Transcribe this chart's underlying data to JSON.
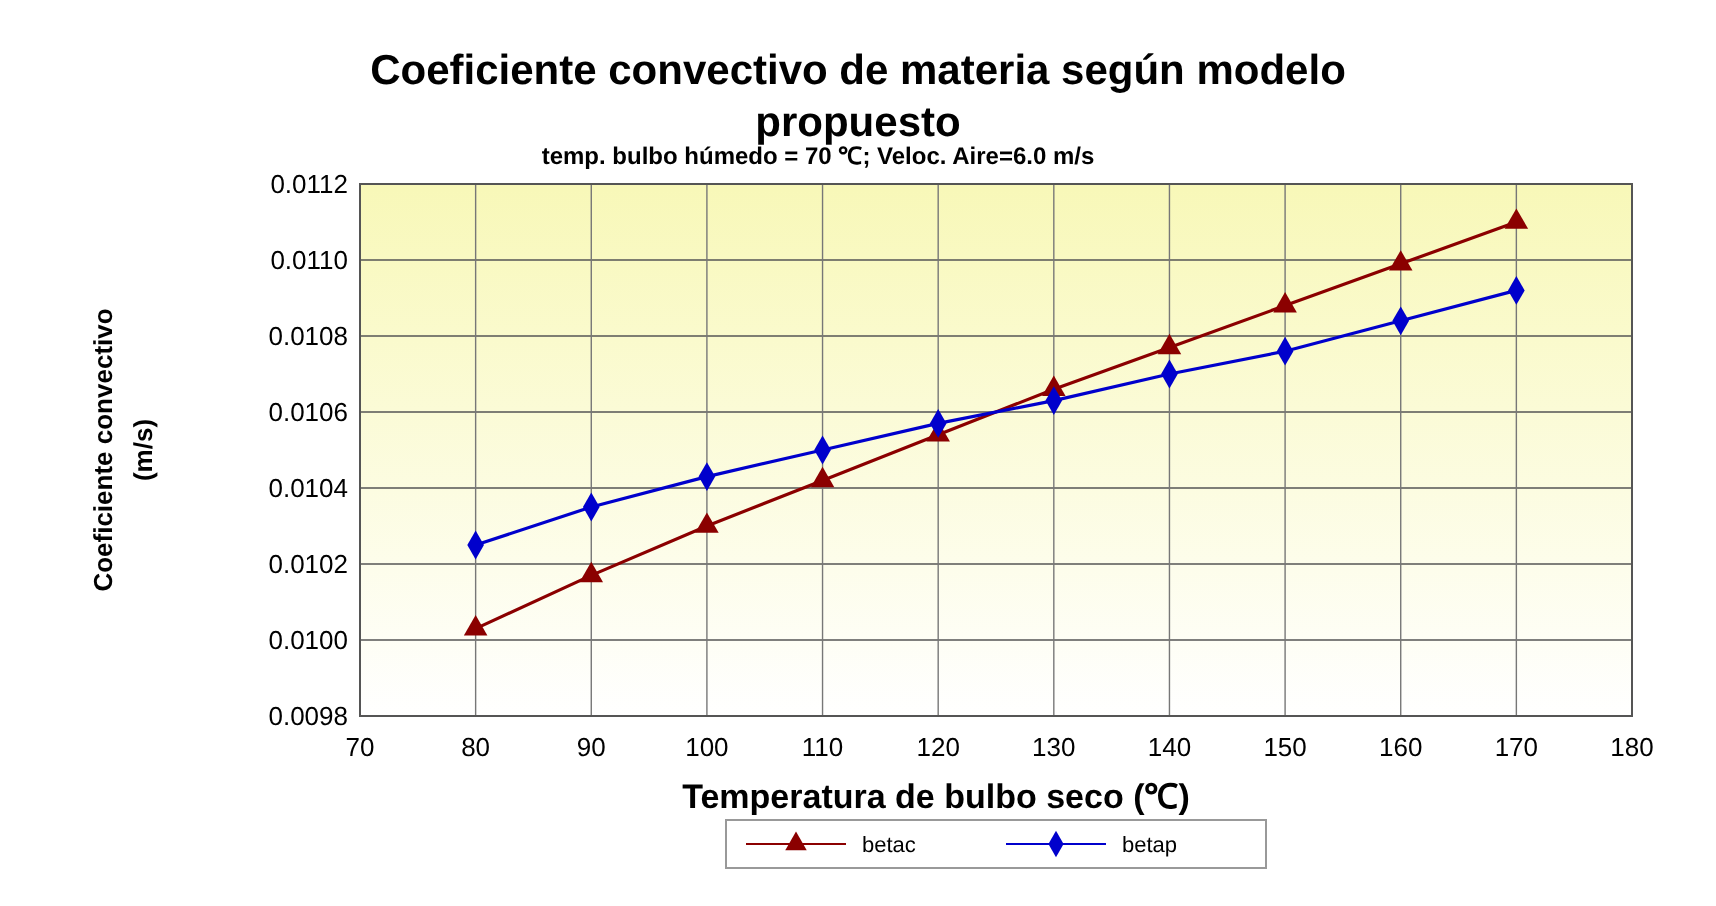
{
  "chart_data": {
    "type": "line",
    "title": "Coeficiente convectivo de materia según modelo propuesto",
    "subtitle": "temp. bulbo húmedo = 70 ℃; Veloc. Aire=6.0 m/s",
    "xlabel": "Temperatura de bulbo seco  (℃)",
    "ylabel": "Coeficiente convectivo (m/s)",
    "x": [
      80,
      90,
      100,
      110,
      120,
      130,
      140,
      150,
      160,
      170
    ],
    "series": [
      {
        "name": "betac",
        "color": "#8b0000",
        "marker": "triangle",
        "values": [
          0.01003,
          0.01017,
          0.0103,
          0.01042,
          0.01054,
          0.01066,
          0.01077,
          0.01088,
          0.01099,
          0.0111
        ]
      },
      {
        "name": "betap",
        "color": "#0000cc",
        "marker": "diamond",
        "values": [
          0.01025,
          0.01035,
          0.01043,
          0.0105,
          0.01057,
          0.01063,
          0.0107,
          0.01076,
          0.01084,
          0.01092
        ]
      }
    ],
    "xlim": [
      70,
      180
    ],
    "xticks": [
      70,
      80,
      90,
      100,
      110,
      120,
      130,
      140,
      150,
      160,
      170,
      180
    ],
    "ylim": [
      0.0098,
      0.0112
    ],
    "yticks": [
      {
        "value": 0.0098,
        "label": "0.0098"
      },
      {
        "value": 0.01,
        "label": "0.0100"
      },
      {
        "value": 0.0102,
        "label": "0.0102"
      },
      {
        "value": 0.0104,
        "label": "0.0104"
      },
      {
        "value": 0.0106,
        "label": "0.0106"
      },
      {
        "value": 0.0108,
        "label": "0.0108"
      },
      {
        "value": 0.011,
        "label": "0.0110"
      },
      {
        "value": 0.0112,
        "label": "0.0112"
      }
    ],
    "grid": true,
    "legend": "bottom",
    "line_style": "solid"
  }
}
